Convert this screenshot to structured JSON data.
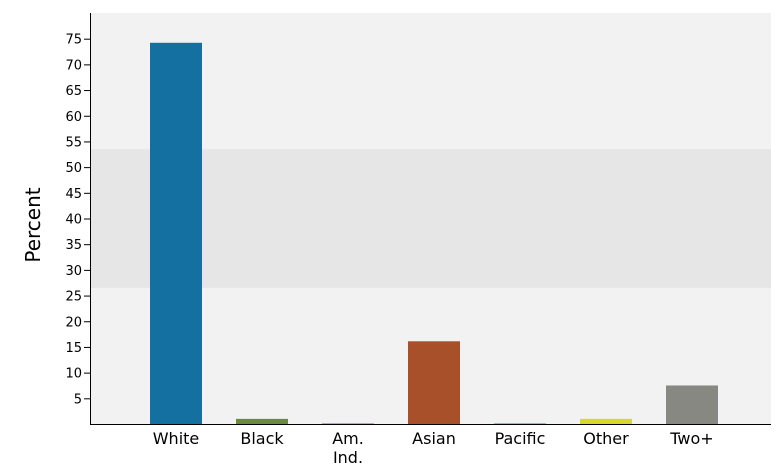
{
  "chart_data": {
    "type": "bar",
    "ylabel": "Percent",
    "xlabel": "",
    "ylim": [
      0,
      80
    ],
    "yticks": [
      5,
      10,
      15,
      20,
      25,
      30,
      35,
      40,
      45,
      50,
      55,
      60,
      65,
      70,
      75
    ],
    "categories": [
      {
        "lines": [
          "White"
        ]
      },
      {
        "lines": [
          "Black"
        ]
      },
      {
        "lines": [
          "Am.",
          "Ind."
        ]
      },
      {
        "lines": [
          "Asian"
        ]
      },
      {
        "lines": [
          "Pacific"
        ]
      },
      {
        "lines": [
          "Other"
        ]
      },
      {
        "lines": [
          "Two+"
        ]
      }
    ],
    "values": [
      74.2,
      1.0,
      0.1,
      16.1,
      0.1,
      1.0,
      7.5
    ],
    "colors": [
      "#1470a0",
      "#6a8c3a",
      "#8c5ba8",
      "#a8502a",
      "#3c8c8c",
      "#d8d82a",
      "#888883"
    ],
    "highlight_band": [
      26.5,
      53.5
    ],
    "background_color": "#f2f2f2",
    "band_color": "#e6e6e6"
  }
}
